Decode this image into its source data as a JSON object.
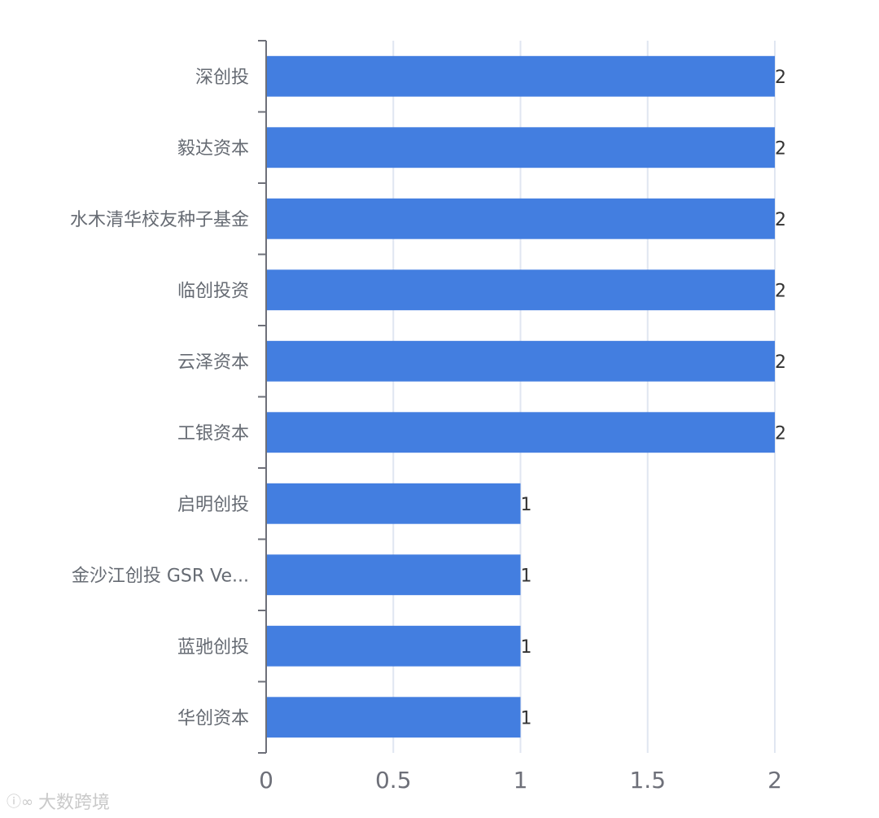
{
  "chart_data": {
    "type": "bar",
    "orientation": "horizontal",
    "categories": [
      "深创投",
      "毅达资本",
      "水木清华校友种子基金",
      "临创投资",
      "云泽资本",
      "工银资本",
      "启明创投",
      "金沙江创投 GSR Ve...",
      "蓝驰创投",
      "华创资本"
    ],
    "values": [
      2,
      2,
      2,
      2,
      2,
      2,
      1,
      1,
      1,
      1
    ],
    "xlim": [
      0,
      2
    ],
    "x_ticks": [
      "0",
      "0.5",
      "1",
      "1.5",
      "2"
    ],
    "grid": true,
    "bar_color": "#437ee0",
    "title": "",
    "xlabel": "",
    "ylabel": ""
  },
  "watermark": {
    "logo": "ⓘ∞",
    "text": "大数跨境"
  }
}
